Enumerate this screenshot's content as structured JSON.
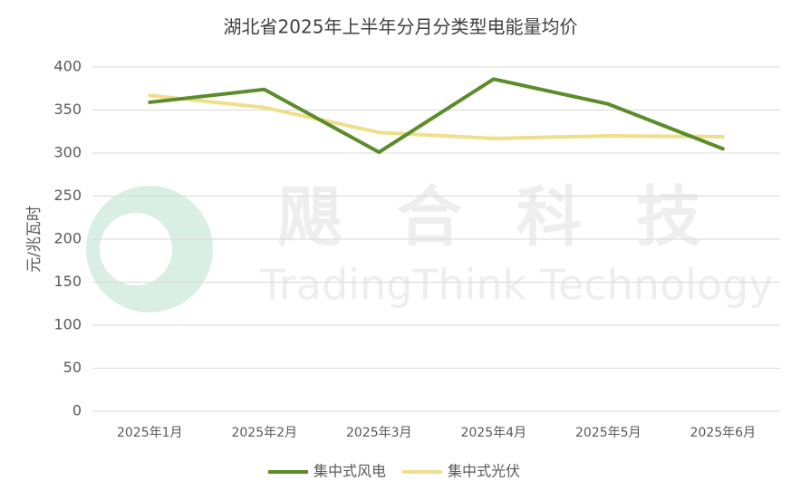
{
  "chart_data": {
    "type": "line",
    "title": "湖北省2025年上半年分月分类型电能量均价",
    "y_label": "元/兆瓦时",
    "watermark": [
      "飓合科技",
      "TradingThink Technology"
    ],
    "categories": [
      "2025年1月",
      "2025年2月",
      "2025年3月",
      "2025年4月",
      "2025年5月",
      "2025年6月"
    ],
    "series": [
      {
        "name": "集中式风电",
        "color": "#5b8c2a",
        "values": [
          359,
          374,
          301,
          386,
          357,
          305
        ]
      },
      {
        "name": "集中式光伏",
        "color": "#f0df8a",
        "values": [
          367,
          353,
          324,
          317,
          320,
          319
        ]
      }
    ],
    "ylim": [
      0,
      400
    ],
    "yticks": [
      0,
      50,
      100,
      150,
      200,
      250,
      300,
      350,
      400
    ],
    "grid": true,
    "legend": "bottom"
  }
}
